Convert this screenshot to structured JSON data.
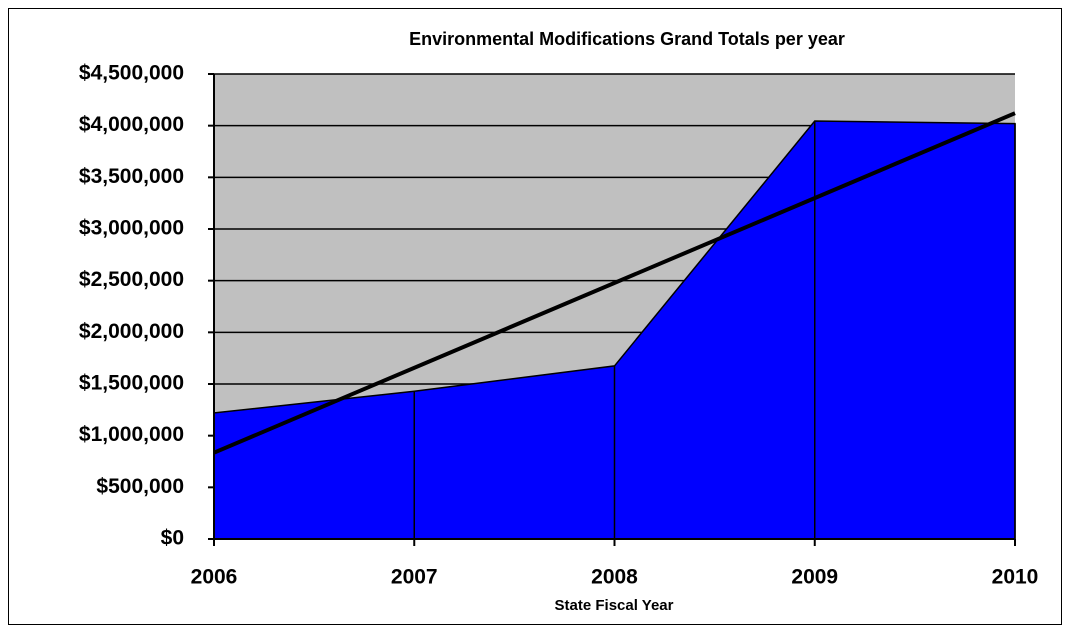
{
  "chart_data": {
    "type": "area",
    "title": "Environmental Modifications Grand Totals per year",
    "x_label": "State Fiscal Year",
    "categories": [
      "2006",
      "2007",
      "2008",
      "2009",
      "2010"
    ],
    "series": [
      {
        "color": "#0000ff",
        "values": [
          1220000,
          1430000,
          1675000,
          4045000,
          4020000
        ]
      }
    ],
    "trendline": "linear",
    "trendline_color": "#000000",
    "plot_background": "#c0c0c0",
    "ylim": [
      0,
      4500000
    ],
    "yticks": [
      {
        "value": 0,
        "label": "$0"
      },
      {
        "value": 500000,
        "label": "$500,000"
      },
      {
        "value": 1000000,
        "label": "$1,000,000"
      },
      {
        "value": 1500000,
        "label": "$1,500,000"
      },
      {
        "value": 2000000,
        "label": "$2,000,000"
      },
      {
        "value": 2500000,
        "label": "$2,500,000"
      },
      {
        "value": 3000000,
        "label": "$3,000,000"
      },
      {
        "value": 3500000,
        "label": "$3,500,000"
      },
      {
        "value": 4000000,
        "label": "$4,000,000"
      },
      {
        "value": 4500000,
        "label": "$4,500,000"
      }
    ],
    "grid": true
  }
}
